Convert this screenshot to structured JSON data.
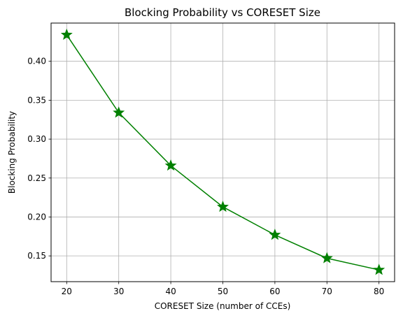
{
  "chart_data": {
    "type": "line",
    "title": "Blocking Probability vs CORESET Size",
    "xlabel": "CORESET Size (number of CCEs)",
    "ylabel": "Blocking Probability",
    "x": [
      20,
      30,
      40,
      50,
      60,
      70,
      80
    ],
    "series": [
      {
        "values": [
          0.434,
          0.334,
          0.266,
          0.213,
          0.177,
          0.147,
          0.132
        ],
        "color": "#008000",
        "marker": "star"
      }
    ],
    "xticks": [
      "20",
      "30",
      "40",
      "50",
      "60",
      "70",
      "80"
    ],
    "yticks": [
      "0.15",
      "0.20",
      "0.25",
      "0.30",
      "0.35",
      "0.40"
    ],
    "xlim": [
      17,
      83
    ],
    "ylim": [
      0.1169,
      0.4491
    ],
    "grid": true,
    "legend": "none"
  }
}
